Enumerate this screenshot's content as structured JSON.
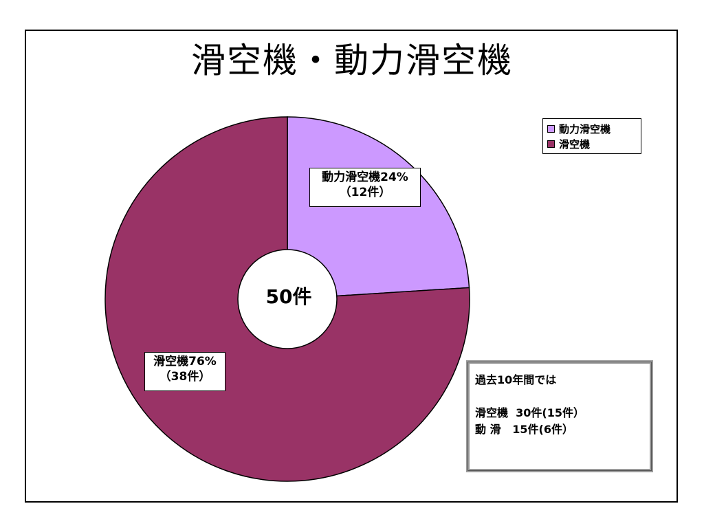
{
  "chart_data": {
    "type": "pie",
    "title": "滑空機・動力滑空機",
    "center_label": "50件",
    "slices": [
      {
        "name": "動力滑空機",
        "label": "動力滑空機24%",
        "count_label": "（12件）",
        "percent": 24,
        "count": 12,
        "color": "#cc99ff"
      },
      {
        "name": "滑空機",
        "label": "滑空機76%",
        "count_label": "（38件）",
        "percent": 76,
        "count": 38,
        "color": "#993366"
      }
    ],
    "legend": {
      "position": "top-right",
      "items": [
        "動力滑空機",
        "滑空機"
      ]
    },
    "start_angle_deg": 0,
    "direction": "clockwise"
  },
  "note": {
    "heading": "過去10年間では",
    "lines": [
      "滑空機  30件(15件）",
      "動 滑   15件(6件）"
    ]
  }
}
